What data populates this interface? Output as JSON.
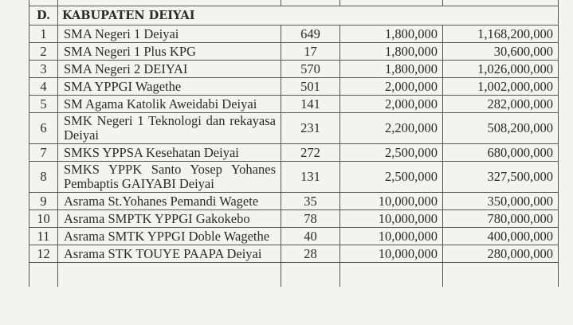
{
  "section": {
    "code": "D.",
    "title": "KABUPATEN DEIYAI"
  },
  "rows": [
    {
      "no": "1",
      "name": "SMA Negeri 1 Deiyai",
      "count": "649",
      "unit": "1,800,000",
      "total": "1,168,200,000"
    },
    {
      "no": "2",
      "name": "SMA Negeri 1 Plus KPG",
      "count": "17",
      "unit": "1,800,000",
      "total": "30,600,000"
    },
    {
      "no": "3",
      "name": "SMA Negeri 2 DEIYAI",
      "count": "570",
      "unit": "1,800,000",
      "total": "1,026,000,000"
    },
    {
      "no": "4",
      "name": "SMA YPPGI Wagethe",
      "count": "501",
      "unit": "2,000,000",
      "total": "1,002,000,000"
    },
    {
      "no": "5",
      "name": "SM Agama Katolik Aweidabi Deiyai",
      "count": "141",
      "unit": "2,000,000",
      "total": "282,000,000"
    },
    {
      "no": "6",
      "name": "SMK Negeri 1 Teknologi dan rekayasa Deiyai",
      "count": "231",
      "unit": "2,200,000",
      "total": "508,200,000"
    },
    {
      "no": "7",
      "name": "SMKS YPPSA Kesehatan Deiyai",
      "count": "272",
      "unit": "2,500,000",
      "total": "680,000,000"
    },
    {
      "no": "8",
      "name": "SMKS YPPK Santo Yosep Yohanes Pembaptis GAIYABI Deiyai",
      "count": "131",
      "unit": "2,500,000",
      "total": "327,500,000"
    },
    {
      "no": "9",
      "name": "Asrama St.Yohanes Pemandi Wagete",
      "count": "35",
      "unit": "10,000,000",
      "total": "350,000,000"
    },
    {
      "no": "10",
      "name": "Asrama SMPTK YPPGI Gakokebo",
      "count": "78",
      "unit": "10,000,000",
      "total": "780,000,000"
    },
    {
      "no": "11",
      "name": "Asrama SMTK YPPGI Doble Wagethe",
      "count": "40",
      "unit": "10,000,000",
      "total": "400,000,000"
    },
    {
      "no": "12",
      "name": "Asrama STK TOUYE PAAPA Deiyai",
      "count": "28",
      "unit": "10,000,000",
      "total": "280,000,000"
    }
  ]
}
